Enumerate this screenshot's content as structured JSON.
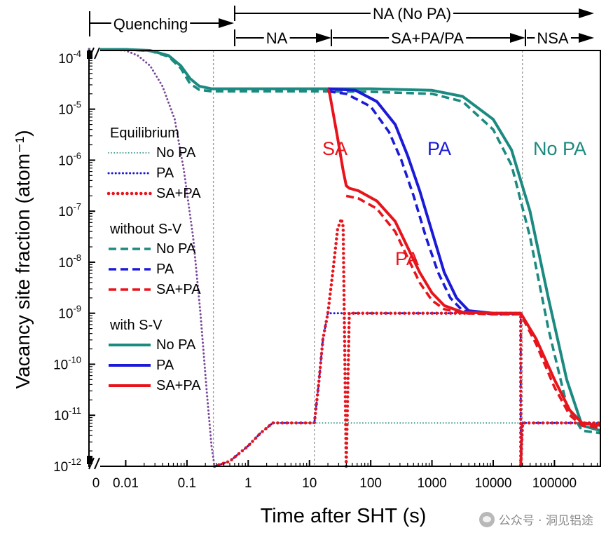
{
  "chart_data": {
    "type": "line",
    "x_scale": "log (axis break at 0)",
    "y_scale": "log",
    "xlabel": "Time after SHT (s)",
    "ylabel": "Vacancy site fraction (atom⁻¹)",
    "x_ticks": [
      "0",
      "0.01",
      "0.1",
      "1",
      "10",
      "100",
      "1000",
      "10000",
      "100000"
    ],
    "y_ticks": [
      {
        "base": "10",
        "exp": "-4"
      },
      {
        "base": "10",
        "exp": "-5"
      },
      {
        "base": "10",
        "exp": "-6"
      },
      {
        "base": "10",
        "exp": "-7"
      },
      {
        "base": "10",
        "exp": "-8"
      },
      {
        "base": "10",
        "exp": "-9"
      },
      {
        "base": "10",
        "exp": "-10"
      },
      {
        "base": "10",
        "exp": "-11"
      },
      {
        "base": "10",
        "exp": "-12"
      }
    ],
    "xlim_log10": [
      -2.6,
      5.75
    ],
    "ylim_log10": [
      -12,
      -3.85
    ],
    "vlines_s": [
      0.27,
      12,
      30000
    ],
    "stage_bar": {
      "quenching": "Quenching",
      "na_no_pa": "NA (No PA)",
      "na": "NA",
      "sa_pa": "SA+PA/PA",
      "nsa": "NSA"
    },
    "annotations": {
      "sa": "SA",
      "pa_blue": "PA",
      "no_pa": "No PA",
      "pa_red": "PA"
    },
    "legend": {
      "groups": [
        {
          "title": "Equilibrium",
          "items": [
            {
              "label": "No PA",
              "color": "#1b8a80",
              "style": "dotted-fine"
            },
            {
              "label": "PA",
              "color": "#1a1ad8",
              "style": "dotted"
            },
            {
              "label": "SA+PA",
              "color": "#e8141c",
              "style": "dotted-thick"
            }
          ]
        },
        {
          "title": "without S-V",
          "items": [
            {
              "label": "No PA",
              "color": "#1b8a80",
              "style": "dashed"
            },
            {
              "label": "PA",
              "color": "#1a1ad8",
              "style": "dashed"
            },
            {
              "label": "SA+PA",
              "color": "#e8141c",
              "style": "dashed"
            }
          ]
        },
        {
          "title": "with S-V",
          "items": [
            {
              "label": "No PA",
              "color": "#1b8a80",
              "style": "solid"
            },
            {
              "label": "PA",
              "color": "#1a1ad8",
              "style": "solid"
            },
            {
              "label": "SA+PA",
              "color": "#e8141c",
              "style": "solid"
            }
          ]
        }
      ]
    },
    "series": [
      {
        "name": "with S-V No PA",
        "color": "#1b8a80",
        "style": "solid",
        "points": [
          [
            -2.6,
            -3.83
          ],
          [
            -2.0,
            -3.83
          ],
          [
            -1.6,
            -3.85
          ],
          [
            -1.3,
            -3.95
          ],
          [
            -1.1,
            -4.15
          ],
          [
            -0.95,
            -4.4
          ],
          [
            -0.8,
            -4.55
          ],
          [
            -0.6,
            -4.6
          ],
          [
            1.0,
            -4.6
          ],
          [
            2.0,
            -4.6
          ],
          [
            3.0,
            -4.63
          ],
          [
            3.5,
            -4.75
          ],
          [
            4.0,
            -5.2
          ],
          [
            4.3,
            -5.8
          ],
          [
            4.6,
            -7.0
          ],
          [
            4.9,
            -8.7
          ],
          [
            5.2,
            -10.3
          ],
          [
            5.45,
            -11.2
          ],
          [
            5.75,
            -11.3
          ]
        ]
      },
      {
        "name": "without S-V No PA",
        "color": "#1b8a80",
        "style": "dashed",
        "points": [
          [
            -2.6,
            -3.83
          ],
          [
            -2.0,
            -3.83
          ],
          [
            -1.6,
            -3.86
          ],
          [
            -1.3,
            -3.97
          ],
          [
            -1.1,
            -4.2
          ],
          [
            -0.95,
            -4.5
          ],
          [
            -0.8,
            -4.62
          ],
          [
            -0.6,
            -4.65
          ],
          [
            1.0,
            -4.65
          ],
          [
            2.0,
            -4.66
          ],
          [
            3.0,
            -4.7
          ],
          [
            3.5,
            -4.85
          ],
          [
            4.0,
            -5.4
          ],
          [
            4.3,
            -6.1
          ],
          [
            4.6,
            -7.5
          ],
          [
            4.9,
            -9.3
          ],
          [
            5.2,
            -10.8
          ],
          [
            5.45,
            -11.3
          ],
          [
            5.75,
            -11.35
          ]
        ]
      },
      {
        "name": "with S-V PA",
        "color": "#1a1ad8",
        "style": "solid",
        "points": [
          [
            1.3,
            -4.6
          ],
          [
            1.75,
            -4.63
          ],
          [
            2.1,
            -4.85
          ],
          [
            2.4,
            -5.3
          ],
          [
            2.6,
            -5.9
          ],
          [
            2.8,
            -6.6
          ],
          [
            3.0,
            -7.4
          ],
          [
            3.2,
            -8.2
          ],
          [
            3.4,
            -8.7
          ],
          [
            3.6,
            -8.95
          ],
          [
            4.0,
            -9.0
          ],
          [
            4.45,
            -9.0
          ]
        ]
      },
      {
        "name": "without S-V PA",
        "color": "#1a1ad8",
        "style": "dashed",
        "points": [
          [
            1.3,
            -4.65
          ],
          [
            1.6,
            -4.7
          ],
          [
            2.0,
            -4.95
          ],
          [
            2.3,
            -5.45
          ],
          [
            2.5,
            -6.0
          ],
          [
            2.7,
            -6.7
          ],
          [
            2.9,
            -7.5
          ],
          [
            3.1,
            -8.2
          ],
          [
            3.3,
            -8.7
          ],
          [
            3.5,
            -8.95
          ],
          [
            4.0,
            -9.02
          ],
          [
            4.45,
            -9.02
          ]
        ]
      },
      {
        "name": "with S-V SA+PA",
        "color": "#e8141c",
        "style": "solid",
        "points": [
          [
            1.3,
            -4.6
          ],
          [
            1.33,
            -4.7
          ],
          [
            1.45,
            -5.5
          ],
          [
            1.55,
            -6.2
          ],
          [
            1.6,
            -6.5
          ],
          [
            1.65,
            -6.55
          ],
          [
            1.8,
            -6.6
          ],
          [
            2.1,
            -6.8
          ],
          [
            2.4,
            -7.2
          ],
          [
            2.6,
            -7.7
          ],
          [
            2.8,
            -8.2
          ],
          [
            3.0,
            -8.6
          ],
          [
            3.2,
            -8.85
          ],
          [
            3.5,
            -8.98
          ],
          [
            4.0,
            -9.0
          ],
          [
            4.45,
            -9.0
          ],
          [
            4.7,
            -9.5
          ],
          [
            5.0,
            -10.3
          ],
          [
            5.25,
            -10.9
          ],
          [
            5.45,
            -11.15
          ],
          [
            5.75,
            -11.2
          ]
        ]
      },
      {
        "name": "without S-V SA+PA",
        "color": "#e8141c",
        "style": "dashed",
        "points": [
          [
            1.6,
            -6.7
          ],
          [
            1.8,
            -6.75
          ],
          [
            2.1,
            -6.95
          ],
          [
            2.4,
            -7.4
          ],
          [
            2.6,
            -7.9
          ],
          [
            2.8,
            -8.4
          ],
          [
            3.0,
            -8.75
          ],
          [
            3.2,
            -8.92
          ],
          [
            3.5,
            -9.0
          ],
          [
            4.0,
            -9.02
          ],
          [
            4.45,
            -9.02
          ],
          [
            4.7,
            -9.6
          ],
          [
            5.0,
            -10.45
          ],
          [
            5.25,
            -11.0
          ],
          [
            5.45,
            -11.2
          ],
          [
            5.75,
            -11.25
          ]
        ]
      },
      {
        "name": "Equilibrium quench",
        "color": "#7a4a9a",
        "style": "dotted",
        "points": [
          [
            -2.6,
            -3.82
          ],
          [
            -2.0,
            -3.85
          ],
          [
            -1.8,
            -3.95
          ],
          [
            -1.6,
            -4.15
          ],
          [
            -1.4,
            -4.55
          ],
          [
            -1.2,
            -5.2
          ],
          [
            -1.05,
            -6.2
          ],
          [
            -0.9,
            -7.5
          ],
          [
            -0.78,
            -9.0
          ],
          [
            -0.68,
            -10.5
          ],
          [
            -0.6,
            -11.6
          ],
          [
            -0.55,
            -12
          ]
        ]
      },
      {
        "name": "Equilibrium No PA",
        "color": "#1b8a80",
        "style": "dotted-fine",
        "points": [
          [
            -0.55,
            -12
          ],
          [
            -0.3,
            -11.9
          ],
          [
            0.0,
            -11.6
          ],
          [
            0.2,
            -11.35
          ],
          [
            0.4,
            -11.15
          ],
          [
            0.6,
            -11.15
          ],
          [
            5.75,
            -11.15
          ]
        ]
      },
      {
        "name": "Equilibrium PA",
        "color": "#1a1ad8",
        "style": "dotted",
        "points": [
          [
            -0.55,
            -12
          ],
          [
            -0.3,
            -11.9
          ],
          [
            0.0,
            -11.6
          ],
          [
            0.2,
            -11.35
          ],
          [
            0.4,
            -11.15
          ],
          [
            1.08,
            -11.15
          ],
          [
            1.15,
            -10.4
          ],
          [
            1.22,
            -9.5
          ],
          [
            1.3,
            -9.0
          ],
          [
            4.45,
            -9.0
          ],
          [
            4.45,
            -12
          ],
          [
            4.48,
            -11.15
          ],
          [
            5.75,
            -11.15
          ]
        ]
      },
      {
        "name": "Equilibrium SA+PA",
        "color": "#e8141c",
        "style": "dotted-thick",
        "points": [
          [
            -0.55,
            -12
          ],
          [
            -0.3,
            -11.9
          ],
          [
            0.0,
            -11.6
          ],
          [
            0.2,
            -11.35
          ],
          [
            0.4,
            -11.15
          ],
          [
            1.08,
            -11.15
          ],
          [
            1.15,
            -10.4
          ],
          [
            1.22,
            -9.5
          ],
          [
            1.3,
            -9.0
          ],
          [
            1.38,
            -8.2
          ],
          [
            1.46,
            -7.35
          ],
          [
            1.52,
            -7.15
          ],
          [
            1.55,
            -7.3
          ],
          [
            1.6,
            -12
          ],
          [
            1.65,
            -9.0
          ],
          [
            4.45,
            -9.0
          ],
          [
            4.45,
            -12
          ],
          [
            4.48,
            -11.15
          ],
          [
            5.75,
            -11.15
          ]
        ]
      }
    ]
  },
  "watermark": {
    "text": "公众号 · 洞见铝途"
  }
}
